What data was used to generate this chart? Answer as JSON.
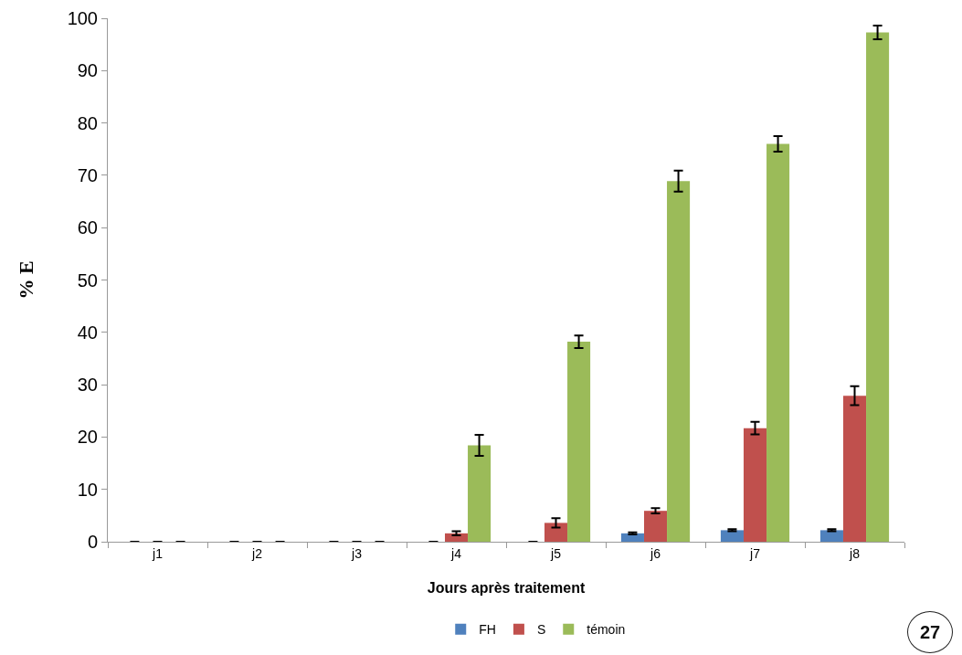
{
  "chart_data": {
    "type": "bar",
    "xlabel": "Jours après traitement",
    "ylabel": "% E",
    "categories": [
      "j1",
      "j2",
      "j3",
      "j4",
      "j5",
      "j6",
      "j7",
      "j8"
    ],
    "series": [
      {
        "name": "FH",
        "color": "#4f81bd",
        "values": [
          0,
          0,
          0,
          0,
          0,
          1.6,
          2.2,
          2.2
        ],
        "errors": [
          null,
          null,
          null,
          null,
          null,
          0.2,
          0.2,
          0.2
        ]
      },
      {
        "name": "S",
        "color": "#c0504d",
        "values": [
          0,
          0,
          0,
          1.6,
          3.6,
          5.9,
          21.7,
          27.9
        ],
        "errors": [
          null,
          null,
          null,
          0.4,
          0.9,
          0.5,
          1.2,
          1.8
        ]
      },
      {
        "name": "témoin",
        "color": "#9bbb59",
        "values": [
          0,
          0,
          0,
          18.4,
          38.2,
          68.9,
          76.0,
          97.3
        ],
        "errors": [
          null,
          null,
          null,
          2,
          1.2,
          2,
          1.5,
          1.3
        ]
      }
    ],
    "ylim": [
      0,
      100
    ],
    "yticks": [
      0,
      10,
      20,
      30,
      40,
      50,
      60,
      70,
      80,
      90,
      100
    ],
    "grid": false,
    "legend": "bottom",
    "annotations": [
      "27"
    ]
  }
}
